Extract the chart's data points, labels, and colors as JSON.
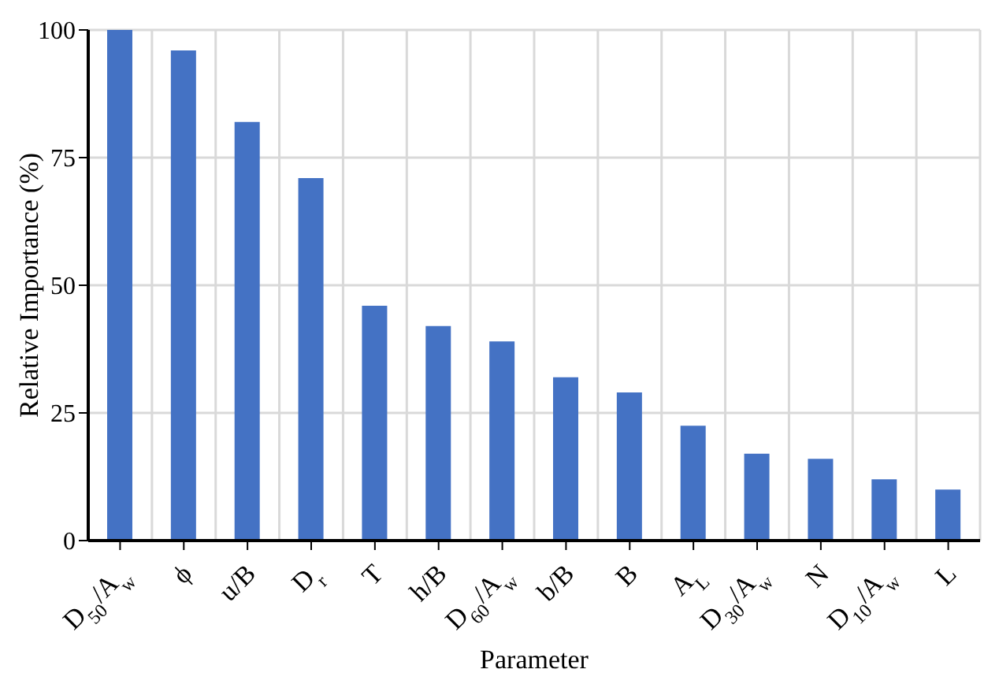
{
  "chart_data": {
    "type": "bar",
    "xlabel": "Parameter",
    "ylabel": "Relative Importance (%)",
    "categories": [
      "D$_{50}$/A$_{w}$",
      "ϕ",
      "u/B",
      "D$_{r}$",
      "T",
      "h/B",
      "D$_{60}$/A$_{w}$",
      "b/B",
      "B",
      "A$_{L}$",
      "D$_{30}$/A$_{w}$",
      "N",
      "D$_{10}$/A$_{w}$",
      "L"
    ],
    "values": [
      100,
      96,
      82,
      71,
      46,
      42,
      39,
      32,
      29,
      22.5,
      17,
      16,
      12,
      10
    ],
    "color": "#4472c4",
    "ylim": [
      0,
      100
    ],
    "yticks": [
      0,
      25,
      50,
      75,
      100
    ],
    "grid": true
  }
}
